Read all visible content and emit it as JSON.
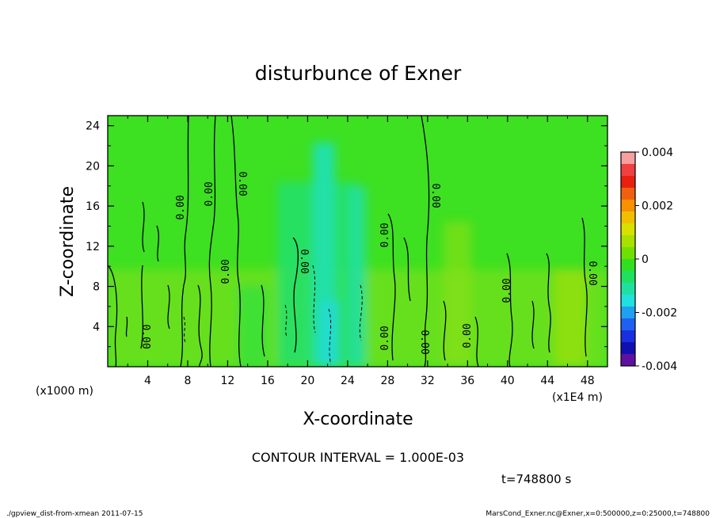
{
  "chart_data": {
    "type": "contour",
    "title": "disturbunce of Exner",
    "xlabel": "X-coordinate",
    "ylabel": "Z-coordinate",
    "x_scale_note": "(x1000 m)",
    "x_scale_note2": "(x1E4 m)",
    "xlim": [
      0,
      50
    ],
    "ylim": [
      0,
      25
    ],
    "xticks": [
      "4",
      "8",
      "12",
      "16",
      "20",
      "24",
      "28",
      "32",
      "36",
      "40",
      "44",
      "48"
    ],
    "yticks": [
      "4",
      "8",
      "12",
      "16",
      "20",
      "24"
    ],
    "colorbar": {
      "min": -0.004,
      "max": 0.004,
      "labels": [
        "0.004",
        "0.002",
        "0",
        "-0.002",
        "-0.004"
      ],
      "colors": [
        "#f8a0a0",
        "#f04040",
        "#e82010",
        "#f06010",
        "#f89000",
        "#f0c000",
        "#d8e000",
        "#a8e000",
        "#70e000",
        "#30e020",
        "#20e060",
        "#20e0a0",
        "#20e0e0",
        "#20a0f0",
        "#2060f0",
        "#1830e0",
        "#1010b0",
        "#6010a0"
      ]
    },
    "contour_interval_text": "CONTOUR INTERVAL = 1.000E-03",
    "contour_labels": [
      "0.00",
      "0.00",
      "0.00",
      "0.00",
      "0.00",
      "0.00",
      "0.00",
      "0.00",
      "0.00",
      "0.00",
      "0.00",
      "0.00",
      "0.00",
      "0.00"
    ],
    "time_text": "t=748800 s"
  },
  "footer": {
    "left": "./gpview_dist-from-xmean  2011-07-15",
    "right": "MarsCond_Exner.nc@Exner,x=0:500000,z=0:25000,t=748800"
  }
}
